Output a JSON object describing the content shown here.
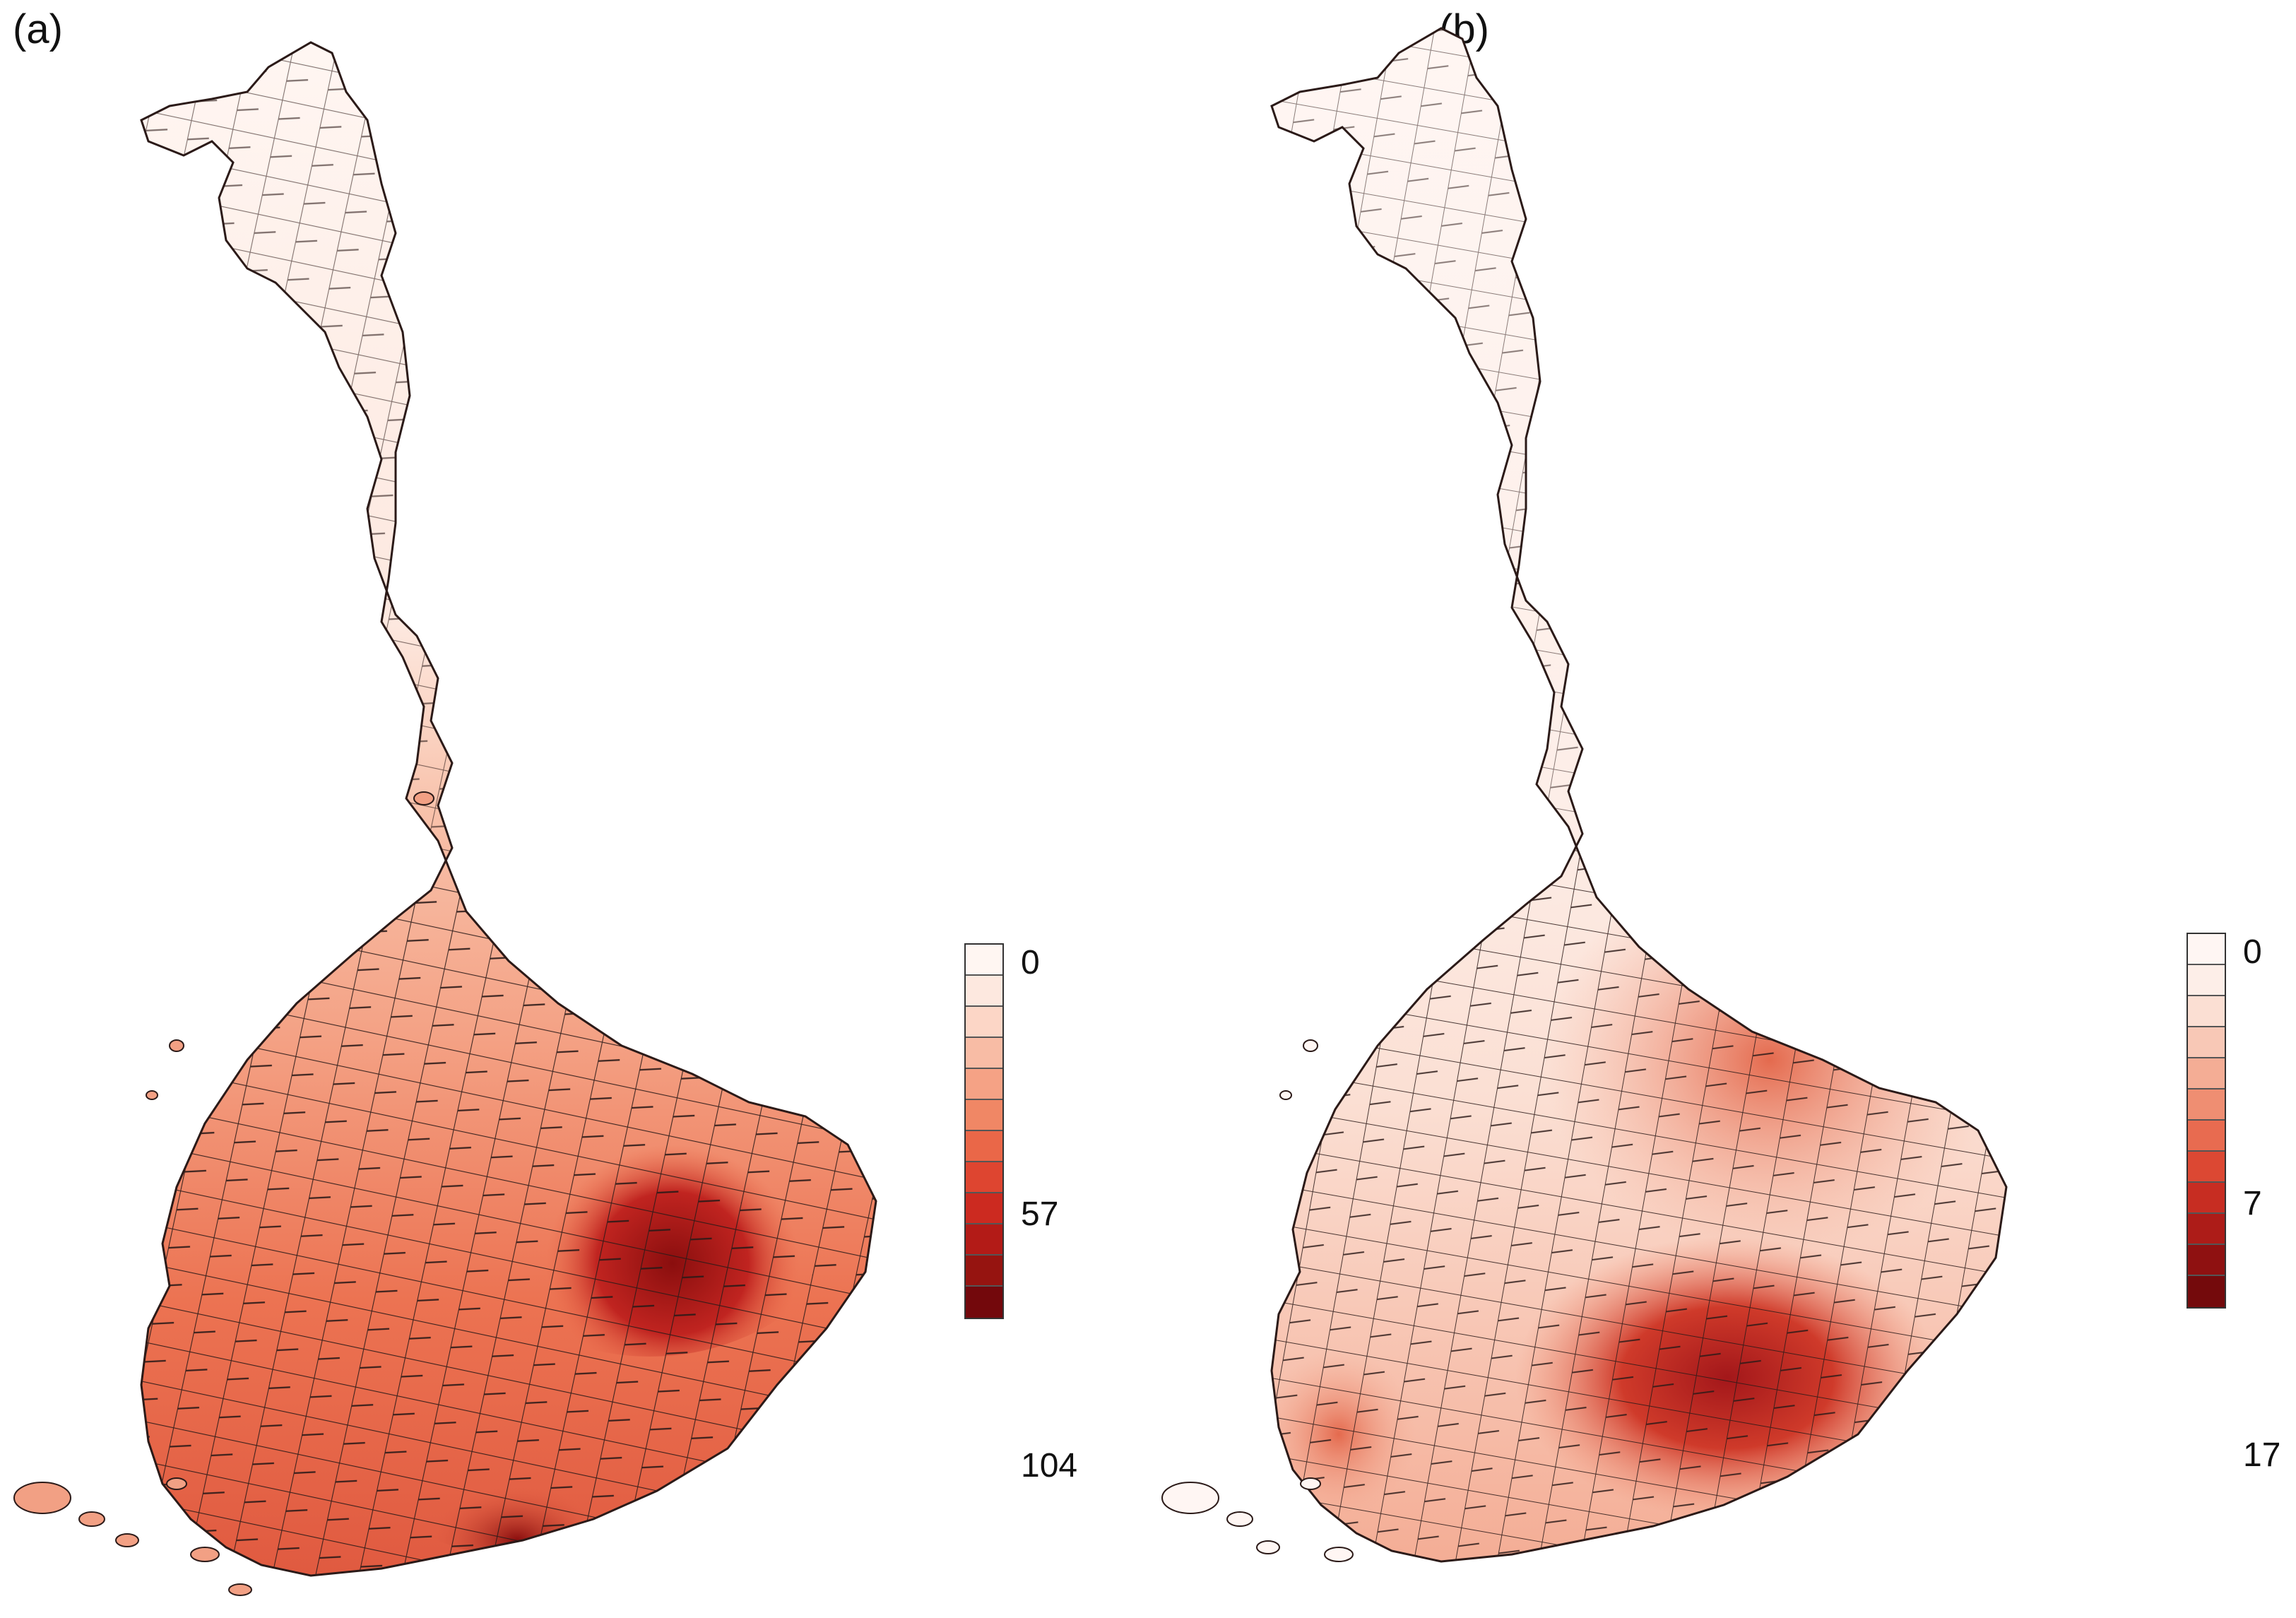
{
  "figure": {
    "panels": [
      {
        "label": "(a)",
        "legend": {
          "ticks": [
            "0",
            "57",
            "104"
          ],
          "colors": [
            "#fff6f2",
            "#fde8df",
            "#fcd6c6",
            "#f8bca5",
            "#f5a285",
            "#f08765",
            "#ea6748",
            "#de4530",
            "#cc2a20",
            "#b31b17",
            "#961410",
            "#73080c"
          ]
        }
      },
      {
        "label": "(b)",
        "legend": {
          "ticks": [
            "0",
            "7",
            "17"
          ],
          "colors": [
            "#fff6f3",
            "#fdeee8",
            "#fbdfd3",
            "#f8c8b6",
            "#f4ad95",
            "#ef8e72",
            "#e86b50",
            "#dc4833",
            "#c72d22",
            "#ad1c18",
            "#8f1111",
            "#740a0c"
          ]
        }
      }
    ]
  }
}
